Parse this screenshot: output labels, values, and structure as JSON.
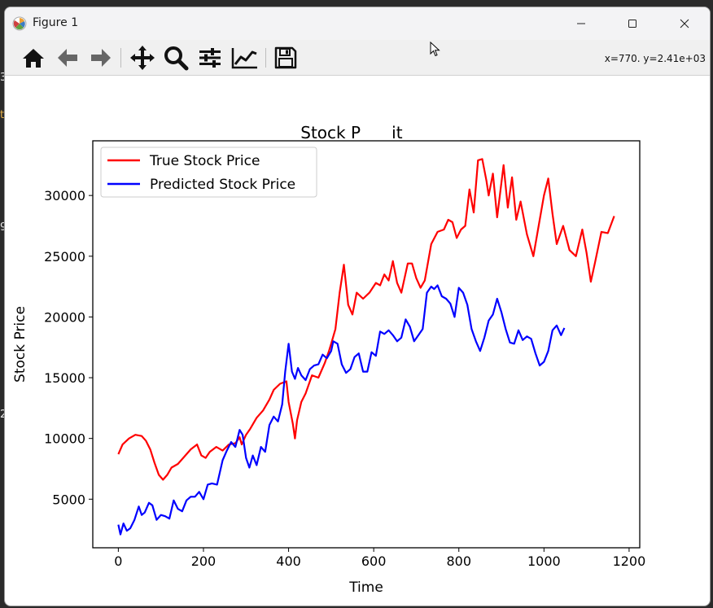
{
  "window": {
    "title": "Figure 1",
    "status_readout": "x=770. y=2.41e+03"
  },
  "toolbar": {
    "buttons": [
      "home-icon",
      "back-arrow-icon",
      "forward-arrow-icon",
      "pan-icon",
      "zoom-icon",
      "configure-subplots-icon",
      "edit-axis-icon",
      "save-icon"
    ]
  },
  "background_glyphs": [
    "3",
    "t",
    "9",
    "2"
  ],
  "colors": {
    "true_series": "#ff0000",
    "predicted_series": "#0000ff"
  },
  "chart_data": {
    "type": "line",
    "title": "Stock P      it      ",
    "xlabel": "Time",
    "ylabel": "Stock Price",
    "xlim": [
      -60,
      1225
    ],
    "ylim": [
      1000,
      34500
    ],
    "xticks": [
      0,
      200,
      400,
      600,
      800,
      1000,
      1200
    ],
    "yticks": [
      5000,
      10000,
      15000,
      20000,
      25000,
      30000
    ],
    "xtick_labels": [
      "0",
      "200",
      "400",
      "600",
      "800",
      "1000",
      "1200"
    ],
    "ytick_labels": [
      "5000",
      "10000",
      "15000",
      "20000",
      "25000",
      "30000"
    ],
    "grid": false,
    "legend_position": "upper-left",
    "series": [
      {
        "name": "True Stock Price",
        "color": "#ff0000",
        "x": [
          0,
          10,
          25,
          40,
          55,
          65,
          75,
          85,
          95,
          105,
          115,
          125,
          140,
          155,
          170,
          185,
          195,
          205,
          215,
          230,
          245,
          260,
          275,
          285,
          290,
          300,
          310,
          325,
          340,
          355,
          365,
          380,
          395,
          400,
          410,
          415,
          420,
          430,
          440,
          455,
          470,
          485,
          495,
          500,
          510,
          520,
          530,
          540,
          550,
          560,
          575,
          590,
          605,
          615,
          625,
          635,
          645,
          655,
          665,
          680,
          690,
          700,
          710,
          720,
          735,
          750,
          765,
          775,
          785,
          795,
          805,
          815,
          825,
          835,
          845,
          855,
          865,
          870,
          880,
          890,
          905,
          915,
          925,
          935,
          945,
          960,
          975,
          990,
          1000,
          1010,
          1020,
          1030,
          1045,
          1060,
          1075,
          1090,
          1100,
          1110,
          1120,
          1135,
          1150,
          1165
        ],
        "values": [
          8700,
          9500,
          10000,
          10300,
          10200,
          9800,
          9100,
          8000,
          7000,
          6600,
          7000,
          7600,
          7900,
          8500,
          9100,
          9500,
          8600,
          8400,
          8900,
          9300,
          9000,
          9500,
          9600,
          10100,
          9500,
          10300,
          10800,
          11700,
          12300,
          13200,
          14000,
          14500,
          14700,
          13000,
          11200,
          10000,
          11500,
          13000,
          13700,
          15200,
          15000,
          16200,
          17200,
          17800,
          19000,
          22000,
          24300,
          21000,
          20200,
          22000,
          21500,
          22000,
          22800,
          22600,
          23500,
          23000,
          24600,
          22800,
          22000,
          24400,
          24400,
          23200,
          22400,
          23000,
          26000,
          27000,
          27200,
          28000,
          27800,
          26500,
          27200,
          27500,
          30500,
          28600,
          32900,
          33000,
          31200,
          30000,
          31800,
          28200,
          32500,
          29000,
          31500,
          28000,
          29500,
          26800,
          25000,
          28000,
          30000,
          31400,
          28500,
          26000,
          27500,
          25500,
          25000,
          27200,
          25300,
          22900,
          24500,
          27000,
          26900,
          28300
        ]
      },
      {
        "name": "Predicted Stock Price",
        "color": "#0000ff",
        "x": [
          0,
          5,
          12,
          20,
          28,
          38,
          48,
          55,
          62,
          72,
          80,
          90,
          100,
          110,
          120,
          130,
          140,
          150,
          160,
          170,
          180,
          190,
          200,
          210,
          220,
          232,
          245,
          255,
          265,
          275,
          285,
          292,
          300,
          308,
          316,
          325,
          335,
          345,
          355,
          365,
          375,
          385,
          392,
          400,
          408,
          415,
          422,
          430,
          440,
          450,
          460,
          470,
          480,
          490,
          500,
          505,
          515,
          525,
          535,
          545,
          555,
          565,
          575,
          585,
          595,
          605,
          615,
          625,
          635,
          645,
          655,
          665,
          675,
          685,
          695,
          705,
          715,
          725,
          735,
          742,
          750,
          760,
          770,
          780,
          790,
          800,
          810,
          820,
          830,
          840,
          850,
          860,
          870,
          880,
          890,
          900,
          910,
          920,
          930,
          940,
          950,
          960,
          970,
          980,
          990,
          1000,
          1010,
          1020,
          1030,
          1040,
          1048
        ],
        "values": [
          2900,
          2100,
          3000,
          2400,
          2600,
          3300,
          4400,
          3700,
          3900,
          4700,
          4500,
          3300,
          3700,
          3600,
          3400,
          4900,
          4200,
          4000,
          4900,
          5200,
          5200,
          5600,
          5000,
          6200,
          6300,
          6200,
          8200,
          9000,
          9700,
          9300,
          10700,
          10300,
          8400,
          7600,
          8600,
          7800,
          9300,
          8900,
          11100,
          11800,
          11400,
          12800,
          15500,
          17800,
          15500,
          14900,
          15800,
          15200,
          14800,
          15700,
          16000,
          16100,
          16900,
          16600,
          17200,
          18000,
          17800,
          16100,
          15400,
          15700,
          16700,
          17000,
          15500,
          15500,
          17100,
          16800,
          18800,
          18600,
          18900,
          18500,
          18000,
          18300,
          19800,
          19200,
          18000,
          18500,
          19000,
          22000,
          22500,
          22300,
          22600,
          21700,
          21500,
          21100,
          20000,
          22400,
          22000,
          21000,
          19000,
          18000,
          17200,
          18300,
          19700,
          20200,
          21500,
          20400,
          19000,
          17900,
          17800,
          18900,
          18100,
          18400,
          18200,
          17000,
          16000,
          16300,
          17200,
          18900,
          19300,
          18500,
          19100
        ]
      }
    ]
  }
}
